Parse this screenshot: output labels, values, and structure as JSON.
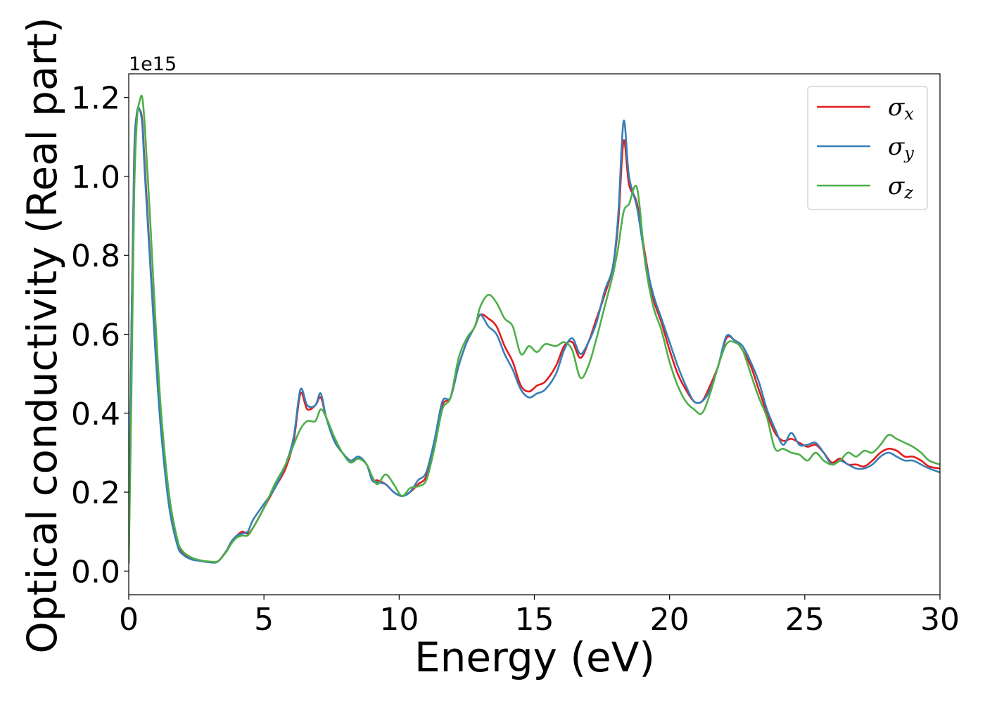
{
  "chart_data": {
    "type": "line",
    "title": "",
    "xlabel": "Energy (eV)",
    "ylabel": "Optical conductivity (Real part)",
    "y_offset_label": "1e15",
    "xlim": [
      0,
      30
    ],
    "ylim": [
      -0.06,
      1.26
    ],
    "xticks": [
      0,
      5,
      10,
      15,
      20,
      25,
      30
    ],
    "yticks": [
      0.0,
      0.2,
      0.4,
      0.6,
      0.8,
      1.0,
      1.2
    ],
    "xtick_labels": [
      "0",
      "5",
      "10",
      "15",
      "20",
      "25",
      "30"
    ],
    "ytick_labels": [
      "0.0",
      "0.2",
      "0.4",
      "0.6",
      "0.8",
      "1.0",
      "1.2"
    ],
    "grid": false,
    "legend_position": "top-right",
    "series": [
      {
        "name": "σx",
        "symbol": "σ",
        "subscript": "x",
        "color": "#e41a1c",
        "x": [
          0,
          0.1,
          0.2,
          0.3,
          0.4,
          0.5,
          0.6,
          0.8,
          1.0,
          1.2,
          1.5,
          1.8,
          2.0,
          2.3,
          2.6,
          3.0,
          3.3,
          3.6,
          3.8,
          4.0,
          4.2,
          4.4,
          4.6,
          5.0,
          5.4,
          5.8,
          6.1,
          6.35,
          6.6,
          6.9,
          7.1,
          7.3,
          7.6,
          7.9,
          8.2,
          8.5,
          8.8,
          9.0,
          9.2,
          9.5,
          9.8,
          10.1,
          10.4,
          10.7,
          11.0,
          11.3,
          11.6,
          11.9,
          12.2,
          12.5,
          12.8,
          13.0,
          13.3,
          13.6,
          13.9,
          14.2,
          14.5,
          14.8,
          15.1,
          15.4,
          15.8,
          16.1,
          16.4,
          16.7,
          17.0,
          17.3,
          17.6,
          17.9,
          18.1,
          18.3,
          18.5,
          18.8,
          19.1,
          19.4,
          19.7,
          20.0,
          20.3,
          20.6,
          20.9,
          21.2,
          21.5,
          21.8,
          22.1,
          22.4,
          22.7,
          23.0,
          23.3,
          23.6,
          23.9,
          24.2,
          24.5,
          24.8,
          25.1,
          25.4,
          25.7,
          26.0,
          26.3,
          26.6,
          26.9,
          27.2,
          27.5,
          27.8,
          28.1,
          28.4,
          28.7,
          29.0,
          29.3,
          29.6,
          30.0
        ],
        "y": [
          0.02,
          0.6,
          1.05,
          1.16,
          1.17,
          1.14,
          1.02,
          0.78,
          0.55,
          0.36,
          0.17,
          0.07,
          0.045,
          0.032,
          0.027,
          0.023,
          0.025,
          0.05,
          0.075,
          0.09,
          0.1,
          0.095,
          0.11,
          0.16,
          0.21,
          0.26,
          0.33,
          0.45,
          0.41,
          0.42,
          0.44,
          0.39,
          0.33,
          0.3,
          0.28,
          0.285,
          0.27,
          0.23,
          0.23,
          0.22,
          0.2,
          0.19,
          0.2,
          0.22,
          0.24,
          0.32,
          0.42,
          0.44,
          0.52,
          0.58,
          0.62,
          0.65,
          0.64,
          0.62,
          0.57,
          0.53,
          0.47,
          0.455,
          0.47,
          0.48,
          0.52,
          0.57,
          0.58,
          0.54,
          0.58,
          0.64,
          0.7,
          0.77,
          0.88,
          1.09,
          0.98,
          0.93,
          0.8,
          0.69,
          0.63,
          0.56,
          0.5,
          0.46,
          0.43,
          0.43,
          0.47,
          0.52,
          0.59,
          0.585,
          0.56,
          0.52,
          0.46,
          0.4,
          0.35,
          0.33,
          0.335,
          0.325,
          0.315,
          0.32,
          0.3,
          0.275,
          0.285,
          0.27,
          0.27,
          0.265,
          0.28,
          0.3,
          0.31,
          0.305,
          0.29,
          0.29,
          0.28,
          0.265,
          0.26
        ]
      },
      {
        "name": "σy",
        "symbol": "σ",
        "subscript": "y",
        "color": "#377eb8",
        "x": [
          0,
          0.1,
          0.2,
          0.3,
          0.4,
          0.5,
          0.6,
          0.8,
          1.0,
          1.2,
          1.5,
          1.8,
          2.0,
          2.3,
          2.6,
          3.0,
          3.3,
          3.6,
          3.8,
          4.0,
          4.2,
          4.4,
          4.6,
          5.0,
          5.4,
          5.8,
          6.1,
          6.35,
          6.6,
          6.9,
          7.1,
          7.3,
          7.6,
          7.9,
          8.2,
          8.5,
          8.8,
          9.0,
          9.2,
          9.5,
          9.8,
          10.1,
          10.4,
          10.7,
          11.0,
          11.3,
          11.6,
          11.9,
          12.2,
          12.5,
          12.8,
          13.0,
          13.3,
          13.6,
          13.9,
          14.2,
          14.5,
          14.8,
          15.1,
          15.4,
          15.8,
          16.1,
          16.4,
          16.7,
          17.0,
          17.3,
          17.6,
          17.9,
          18.1,
          18.3,
          18.5,
          18.8,
          19.1,
          19.4,
          19.7,
          20.0,
          20.3,
          20.6,
          20.9,
          21.2,
          21.5,
          21.8,
          22.1,
          22.4,
          22.7,
          23.0,
          23.3,
          23.6,
          23.9,
          24.2,
          24.5,
          24.8,
          25.1,
          25.4,
          25.7,
          26.0,
          26.3,
          26.6,
          26.9,
          27.2,
          27.5,
          27.8,
          28.1,
          28.4,
          28.7,
          29.0,
          29.3,
          29.6,
          30.0
        ],
        "y": [
          0.02,
          0.6,
          1.04,
          1.16,
          1.17,
          1.13,
          1.0,
          0.77,
          0.54,
          0.35,
          0.16,
          0.065,
          0.042,
          0.03,
          0.026,
          0.022,
          0.024,
          0.05,
          0.075,
          0.09,
          0.095,
          0.1,
          0.13,
          0.17,
          0.21,
          0.27,
          0.34,
          0.46,
          0.42,
          0.42,
          0.45,
          0.39,
          0.33,
          0.3,
          0.28,
          0.29,
          0.27,
          0.23,
          0.225,
          0.22,
          0.2,
          0.19,
          0.2,
          0.23,
          0.25,
          0.33,
          0.43,
          0.44,
          0.52,
          0.58,
          0.62,
          0.65,
          0.62,
          0.6,
          0.55,
          0.51,
          0.46,
          0.44,
          0.45,
          0.46,
          0.5,
          0.56,
          0.59,
          0.55,
          0.58,
          0.63,
          0.71,
          0.77,
          0.9,
          1.14,
          1.0,
          0.92,
          0.79,
          0.7,
          0.64,
          0.58,
          0.52,
          0.47,
          0.43,
          0.43,
          0.46,
          0.52,
          0.595,
          0.585,
          0.57,
          0.53,
          0.48,
          0.41,
          0.36,
          0.32,
          0.35,
          0.32,
          0.32,
          0.325,
          0.3,
          0.27,
          0.28,
          0.27,
          0.26,
          0.26,
          0.27,
          0.29,
          0.3,
          0.29,
          0.28,
          0.28,
          0.27,
          0.26,
          0.25
        ]
      },
      {
        "name": "σz",
        "symbol": "σ",
        "subscript": "z",
        "color": "#4daf4a",
        "x": [
          0,
          0.1,
          0.2,
          0.3,
          0.4,
          0.5,
          0.6,
          0.8,
          1.0,
          1.2,
          1.5,
          1.8,
          2.0,
          2.3,
          2.6,
          3.0,
          3.3,
          3.6,
          3.8,
          4.0,
          4.2,
          4.4,
          4.6,
          5.0,
          5.4,
          5.8,
          6.1,
          6.35,
          6.6,
          6.9,
          7.1,
          7.3,
          7.6,
          7.9,
          8.2,
          8.5,
          8.8,
          9.0,
          9.2,
          9.5,
          9.8,
          10.1,
          10.4,
          10.7,
          11.0,
          11.3,
          11.6,
          11.9,
          12.2,
          12.5,
          12.8,
          13.0,
          13.3,
          13.6,
          13.9,
          14.2,
          14.5,
          14.8,
          15.1,
          15.4,
          15.8,
          16.1,
          16.4,
          16.7,
          17.0,
          17.3,
          17.6,
          17.9,
          18.1,
          18.3,
          18.5,
          18.8,
          19.1,
          19.4,
          19.7,
          20.0,
          20.3,
          20.6,
          20.9,
          21.2,
          21.5,
          21.8,
          22.1,
          22.4,
          22.7,
          23.0,
          23.3,
          23.6,
          23.9,
          24.2,
          24.5,
          24.8,
          25.1,
          25.4,
          25.7,
          26.0,
          26.3,
          26.6,
          26.9,
          27.2,
          27.5,
          27.8,
          28.1,
          28.4,
          28.7,
          29.0,
          29.3,
          29.6,
          30.0
        ],
        "y": [
          0.02,
          0.45,
          0.95,
          1.14,
          1.19,
          1.2,
          1.12,
          0.88,
          0.62,
          0.4,
          0.19,
          0.08,
          0.05,
          0.035,
          0.028,
          0.024,
          0.025,
          0.048,
          0.07,
          0.085,
          0.09,
          0.09,
          0.11,
          0.16,
          0.22,
          0.27,
          0.32,
          0.36,
          0.38,
          0.38,
          0.41,
          0.39,
          0.34,
          0.3,
          0.275,
          0.285,
          0.27,
          0.24,
          0.22,
          0.245,
          0.22,
          0.19,
          0.21,
          0.215,
          0.23,
          0.31,
          0.41,
          0.44,
          0.54,
          0.59,
          0.62,
          0.67,
          0.7,
          0.68,
          0.64,
          0.62,
          0.55,
          0.57,
          0.555,
          0.575,
          0.57,
          0.58,
          0.56,
          0.49,
          0.52,
          0.59,
          0.67,
          0.75,
          0.82,
          0.91,
          0.93,
          0.97,
          0.78,
          0.67,
          0.61,
          0.53,
          0.47,
          0.43,
          0.41,
          0.4,
          0.45,
          0.52,
          0.575,
          0.58,
          0.56,
          0.5,
          0.44,
          0.39,
          0.31,
          0.31,
          0.3,
          0.295,
          0.28,
          0.3,
          0.28,
          0.27,
          0.28,
          0.3,
          0.29,
          0.305,
          0.3,
          0.32,
          0.345,
          0.335,
          0.325,
          0.315,
          0.3,
          0.28,
          0.27
        ]
      }
    ]
  }
}
